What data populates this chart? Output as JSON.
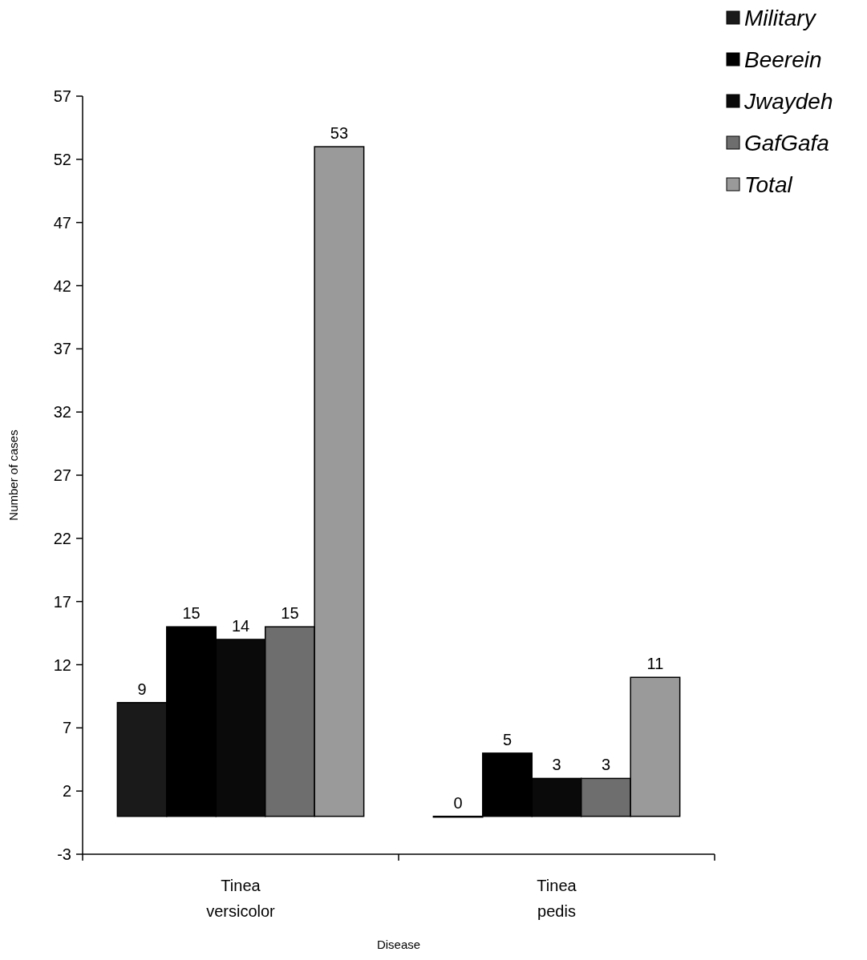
{
  "chart_data": {
    "type": "bar",
    "xlabel": "Disease",
    "ylabel": "Number of cases",
    "categories": [
      "Tinea versicolor",
      "Tinea pedis"
    ],
    "series": [
      {
        "name": "Military",
        "color": "#1a1a1a",
        "values": [
          9,
          0
        ]
      },
      {
        "name": "Beerein",
        "color": "#000000",
        "values": [
          15,
          5
        ]
      },
      {
        "name": "Jwaydeh",
        "color": "#0a0a0a",
        "values": [
          14,
          3
        ]
      },
      {
        "name": "GafGafa",
        "color": "#6e6e6e",
        "values": [
          15,
          3
        ]
      },
      {
        "name": "Total",
        "color": "#9a9a9a",
        "values": [
          53,
          11
        ]
      }
    ],
    "ylim": [
      -3,
      57
    ],
    "yticks": [
      -3,
      2,
      7,
      12,
      17,
      22,
      27,
      32,
      37,
      42,
      47,
      52,
      57
    ],
    "data_labels": true,
    "legend": "top right",
    "grid": false
  }
}
